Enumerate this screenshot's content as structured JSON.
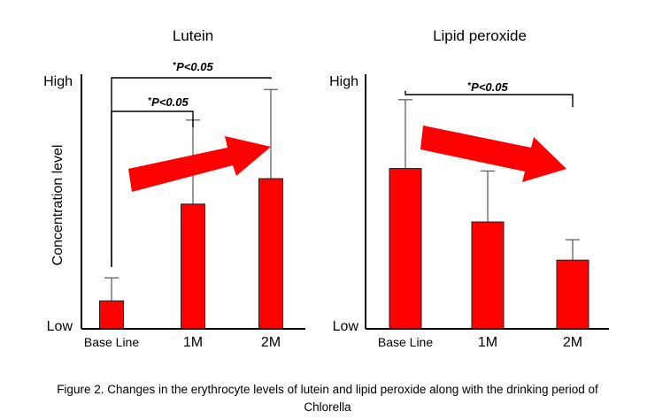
{
  "chart_data": [
    {
      "type": "bar",
      "title": "Lutein",
      "ylabel": "Concentration level",
      "yticks": [
        "High",
        "Low"
      ],
      "ylim": [
        0,
        1
      ],
      "categories": [
        "Base Line",
        "1M",
        "2M"
      ],
      "values": [
        0.11,
        0.49,
        0.59
      ],
      "error_upper": [
        0.2,
        0.82,
        0.94
      ],
      "trend_arrow": "increasing",
      "colors": {
        "bar": "#ff0000",
        "arrow": "#ff0000"
      },
      "significance": [
        {
          "from": "Base Line",
          "to": "1M",
          "label_star": "*",
          "label": "P<0.05"
        },
        {
          "from": "Base Line",
          "to": "2M",
          "label_star": "*",
          "label": "P<0.05"
        }
      ]
    },
    {
      "type": "bar",
      "title": "Lipid peroxide",
      "ylabel": "",
      "yticks": [
        "High",
        "Low"
      ],
      "ylim": [
        0,
        1
      ],
      "categories": [
        "Base Line",
        "1M",
        "2M"
      ],
      "values": [
        0.63,
        0.42,
        0.27
      ],
      "error_upper": [
        0.9,
        0.62,
        0.35
      ],
      "trend_arrow": "decreasing",
      "colors": {
        "bar": "#ff0000",
        "arrow": "#ff0000"
      },
      "significance": [
        {
          "from": "Base Line",
          "to": "2M",
          "label_star": "*",
          "label": "P<0.05"
        }
      ]
    }
  ],
  "caption": {
    "line1": "Figure 2. Changes in the erythrocyte levels of lutein and lipid peroxide along with the drinking period of",
    "line2": "Chlorella"
  }
}
